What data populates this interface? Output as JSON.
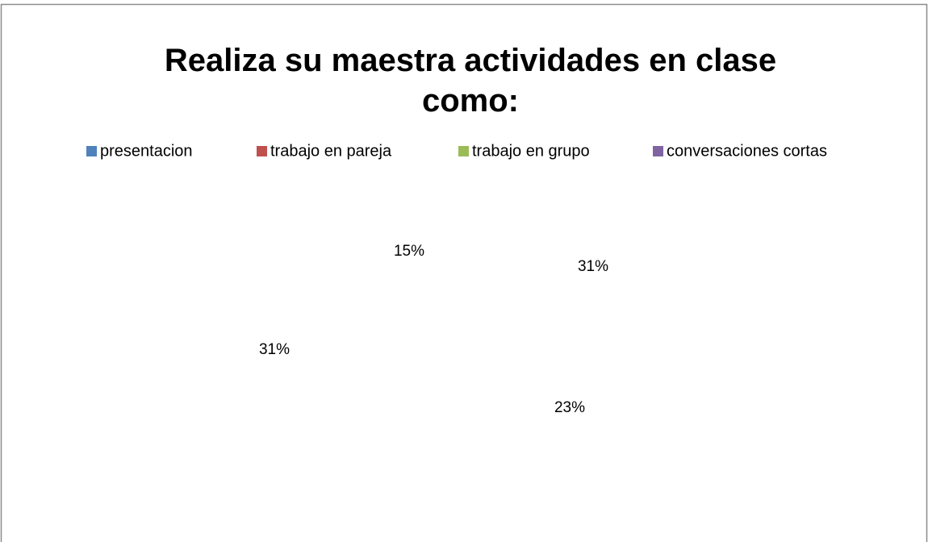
{
  "chart_data": {
    "type": "pie",
    "title": "Realiza su maestra actividades en clase como:",
    "categories": [
      "presentacion",
      "trabajo en pareja",
      "trabajo en grupo",
      "conversaciones cortas"
    ],
    "values": [
      31,
      23,
      31,
      15
    ],
    "value_labels": [
      "31%",
      "23%",
      "31%",
      "15%"
    ],
    "colors": [
      "#4f81bd",
      "#c0504d",
      "#9bbb59",
      "#8064a2"
    ],
    "legend": "top"
  }
}
